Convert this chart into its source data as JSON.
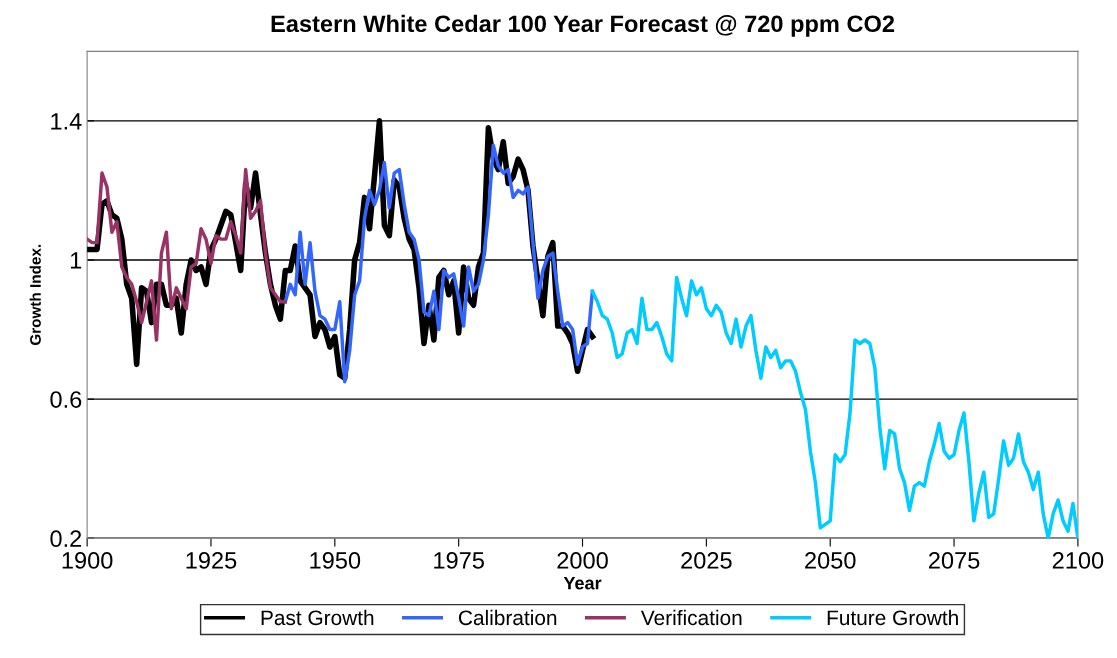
{
  "chart_data": {
    "type": "line",
    "title": "Eastern White Cedar 100 Year Forecast @ 720 ppm CO2",
    "xlabel": "Year",
    "ylabel": "Growth Index.",
    "xlim": [
      1900,
      2100
    ],
    "xticks": [
      1900,
      1925,
      1950,
      1975,
      2000,
      2025,
      2050,
      2075,
      2100
    ],
    "ylim": [
      0.2,
      1.6
    ],
    "yticks": [
      0.2,
      0.6,
      1,
      1.4
    ],
    "grid": "y",
    "legend": "bottom",
    "marker": "none",
    "line_style": "solid",
    "series": [
      {
        "name": "Past Growth",
        "color": "#000000",
        "x": [
          1900,
          1901,
          1902,
          1903,
          1904,
          1905,
          1906,
          1907,
          1908,
          1909,
          1910,
          1911,
          1912,
          1913,
          1914,
          1915,
          1916,
          1917,
          1918,
          1919,
          1920,
          1921,
          1922,
          1923,
          1924,
          1925,
          1926,
          1927,
          1928,
          1929,
          1930,
          1931,
          1932,
          1933,
          1934,
          1935,
          1936,
          1937,
          1938,
          1939,
          1940,
          1941,
          1942,
          1943,
          1944,
          1945,
          1946,
          1947,
          1948,
          1949,
          1950,
          1951,
          1952,
          1953,
          1954,
          1955,
          1956,
          1957,
          1958,
          1959,
          1960,
          1961,
          1962,
          1963,
          1964,
          1965,
          1966,
          1967,
          1968,
          1969,
          1970,
          1971,
          1972,
          1973,
          1974,
          1975,
          1976,
          1977,
          1978,
          1979,
          1980,
          1981,
          1982,
          1983,
          1984,
          1985,
          1986,
          1987,
          1988,
          1989,
          1990,
          1991,
          1992,
          1993,
          1994,
          1995,
          1996,
          1997,
          1998,
          1999,
          2000,
          2001,
          2002
        ],
        "values": [
          1.03,
          1.03,
          1.03,
          1.16,
          1.17,
          1.13,
          1.12,
          1.06,
          0.93,
          0.89,
          0.7,
          0.92,
          0.91,
          0.82,
          0.93,
          0.93,
          0.87,
          0.87,
          0.89,
          0.79,
          0.93,
          1.0,
          0.97,
          0.98,
          0.93,
          1.03,
          1.06,
          1.1,
          1.14,
          1.13,
          1.05,
          0.97,
          1.22,
          1.15,
          1.25,
          1.13,
          1.02,
          0.93,
          0.87,
          0.83,
          0.97,
          0.97,
          1.04,
          0.94,
          0.92,
          0.9,
          0.78,
          0.82,
          0.8,
          0.75,
          0.78,
          0.67,
          0.66,
          0.8,
          1.0,
          1.05,
          1.18,
          1.09,
          1.24,
          1.4,
          1.1,
          1.07,
          1.23,
          1.21,
          1.12,
          1.06,
          1.03,
          0.92,
          0.76,
          0.87,
          0.77,
          0.95,
          0.97,
          0.9,
          0.94,
          0.79,
          0.98,
          0.89,
          0.87,
          0.98,
          1.02,
          1.38,
          1.29,
          1.26,
          1.34,
          1.22,
          1.24,
          1.29,
          1.26,
          1.2,
          1.04,
          0.94,
          0.84,
          1.01,
          1.05,
          0.81,
          0.81,
          0.79,
          0.76,
          0.68,
          0.74,
          0.8,
          0.78
        ]
      },
      {
        "name": "Calibration",
        "color": "#3366ff",
        "x": [
          1940,
          1941,
          1942,
          1943,
          1944,
          1945,
          1946,
          1947,
          1948,
          1949,
          1950,
          1951,
          1952,
          1953,
          1954,
          1955,
          1956,
          1957,
          1958,
          1959,
          1960,
          1961,
          1962,
          1963,
          1964,
          1965,
          1966,
          1967,
          1968,
          1969,
          1970,
          1971,
          1972,
          1973,
          1974,
          1975,
          1976,
          1977,
          1978,
          1979,
          1980,
          1981,
          1982,
          1983,
          1984,
          1985,
          1986,
          1987,
          1988,
          1989,
          1990,
          1991,
          1992,
          1993,
          1994,
          1995,
          1996,
          1997,
          1998,
          1999,
          2000,
          2001,
          2002
        ],
        "values": [
          0.88,
          0.93,
          0.9,
          1.08,
          0.93,
          1.05,
          0.91,
          0.84,
          0.83,
          0.8,
          0.8,
          0.88,
          0.65,
          0.74,
          0.9,
          0.94,
          1.12,
          1.2,
          1.16,
          1.2,
          1.28,
          1.15,
          1.25,
          1.26,
          1.16,
          1.08,
          1.06,
          1.0,
          0.85,
          0.84,
          0.91,
          0.8,
          0.97,
          0.95,
          0.96,
          0.89,
          0.81,
          0.98,
          0.91,
          0.93,
          1.0,
          1.13,
          1.33,
          1.27,
          1.25,
          1.26,
          1.18,
          1.2,
          1.19,
          1.21,
          1.05,
          0.89,
          0.97,
          1.01,
          1.02,
          0.91,
          0.81,
          0.82,
          0.8,
          0.7,
          0.75,
          0.76,
          0.91
        ]
      },
      {
        "name": "Verification",
        "color": "#993366",
        "x": [
          1900,
          1901,
          1902,
          1903,
          1904,
          1905,
          1906,
          1907,
          1908,
          1909,
          1910,
          1911,
          1912,
          1913,
          1914,
          1915,
          1916,
          1917,
          1918,
          1919,
          1920,
          1921,
          1922,
          1923,
          1924,
          1925,
          1926,
          1927,
          1928,
          1929,
          1930,
          1931,
          1932,
          1933,
          1934,
          1935,
          1936,
          1937,
          1938,
          1939,
          1940
        ],
        "values": [
          1.06,
          1.05,
          1.05,
          1.25,
          1.21,
          1.08,
          1.11,
          0.98,
          0.95,
          0.93,
          0.88,
          0.82,
          0.88,
          0.94,
          0.77,
          1.02,
          1.08,
          0.86,
          0.92,
          0.89,
          0.86,
          0.98,
          0.99,
          1.09,
          1.06,
          0.99,
          1.07,
          1.06,
          1.06,
          1.11,
          1.07,
          1.02,
          1.26,
          1.12,
          1.14,
          1.17,
          1.02,
          0.92,
          0.9,
          0.88,
          0.88
        ]
      },
      {
        "name": "Future Growth",
        "color": "#00ccff",
        "x": [
          2002,
          2003,
          2004,
          2005,
          2006,
          2007,
          2008,
          2009,
          2010,
          2011,
          2012,
          2013,
          2014,
          2015,
          2016,
          2017,
          2018,
          2019,
          2020,
          2021,
          2022,
          2023,
          2024,
          2025,
          2026,
          2027,
          2028,
          2029,
          2030,
          2031,
          2032,
          2033,
          2034,
          2035,
          2036,
          2037,
          2038,
          2039,
          2040,
          2041,
          2042,
          2043,
          2044,
          2045,
          2046,
          2047,
          2048,
          2049,
          2050,
          2051,
          2052,
          2053,
          2054,
          2055,
          2056,
          2057,
          2058,
          2059,
          2060,
          2061,
          2062,
          2063,
          2064,
          2065,
          2066,
          2067,
          2068,
          2069,
          2070,
          2071,
          2072,
          2073,
          2074,
          2075,
          2076,
          2077,
          2078,
          2079,
          2080,
          2081,
          2082,
          2083,
          2084,
          2085,
          2086,
          2087,
          2088,
          2089,
          2090,
          2091,
          2092,
          2093,
          2094,
          2095,
          2096,
          2097,
          2098,
          2099,
          2100
        ],
        "values": [
          0.91,
          0.88,
          0.84,
          0.83,
          0.79,
          0.72,
          0.73,
          0.79,
          0.8,
          0.76,
          0.89,
          0.8,
          0.8,
          0.82,
          0.78,
          0.73,
          0.71,
          0.95,
          0.89,
          0.84,
          0.94,
          0.9,
          0.92,
          0.86,
          0.84,
          0.87,
          0.85,
          0.79,
          0.76,
          0.83,
          0.75,
          0.81,
          0.84,
          0.74,
          0.66,
          0.75,
          0.72,
          0.74,
          0.69,
          0.71,
          0.71,
          0.68,
          0.62,
          0.57,
          0.45,
          0.36,
          0.23,
          0.24,
          0.25,
          0.44,
          0.42,
          0.44,
          0.56,
          0.77,
          0.76,
          0.77,
          0.76,
          0.69,
          0.52,
          0.4,
          0.51,
          0.5,
          0.4,
          0.36,
          0.28,
          0.35,
          0.36,
          0.35,
          0.42,
          0.47,
          0.53,
          0.45,
          0.43,
          0.44,
          0.51,
          0.56,
          0.42,
          0.25,
          0.33,
          0.39,
          0.26,
          0.27,
          0.37,
          0.48,
          0.41,
          0.43,
          0.5,
          0.42,
          0.39,
          0.34,
          0.39,
          0.27,
          0.2,
          0.27,
          0.31,
          0.25,
          0.22,
          0.3,
          0.2
        ]
      }
    ]
  }
}
